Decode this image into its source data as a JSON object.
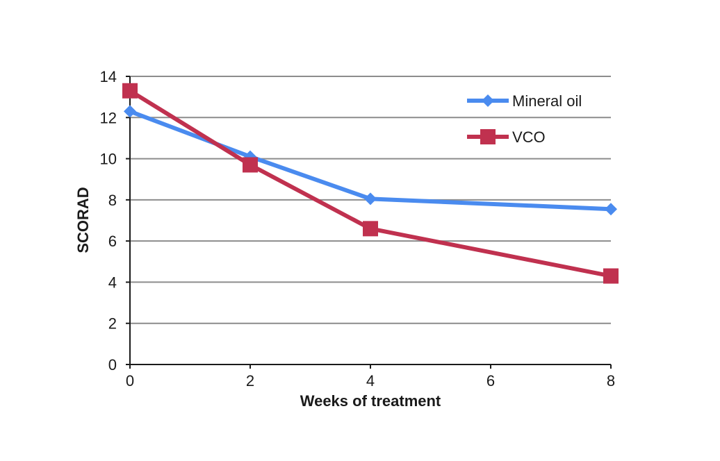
{
  "chart_data": {
    "type": "line",
    "title": "",
    "xlabel": "Weeks of treatment",
    "ylabel": "SCORAD",
    "x": [
      0,
      2,
      4,
      8
    ],
    "xlim": [
      0,
      8
    ],
    "ylim": [
      0,
      14
    ],
    "xticks": [
      0,
      2,
      4,
      6,
      8
    ],
    "yticks": [
      0,
      2,
      4,
      6,
      8,
      10,
      12,
      14
    ],
    "grid": "horizontal",
    "legend": "top-right",
    "series": [
      {
        "name": "Mineral oil",
        "values": [
          12.3,
          10.1,
          8.05,
          7.55
        ],
        "color": "#4a8bef",
        "marker": "diamond"
      },
      {
        "name": "VCO",
        "values": [
          13.3,
          9.7,
          6.6,
          4.3
        ],
        "color": "#c0314f",
        "marker": "square"
      }
    ]
  }
}
